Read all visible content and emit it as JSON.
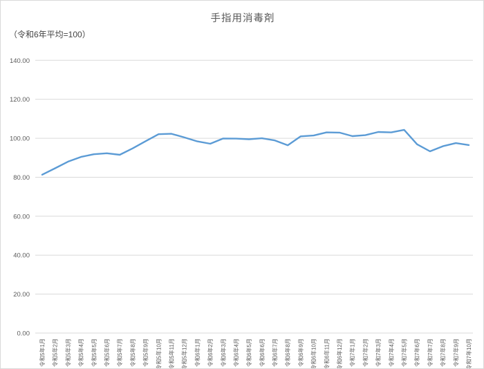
{
  "chart": {
    "title": "手指用消毒剤",
    "subtitle": "（令和6年平均=100）"
  },
  "chart_data": {
    "type": "line",
    "title": "手指用消毒剤",
    "subtitle": "（令和6年平均=100）",
    "categories": [
      "令和5年1月",
      "令和5年2月",
      "令和5年3月",
      "令和5年4月",
      "令和5年5月",
      "令和5年6月",
      "令和5年7月",
      "令和5年8月",
      "令和5年9月",
      "令和5年10月",
      "令和5年11月",
      "令和5年12月",
      "令和6年1月",
      "令和6年2月",
      "令和6年3月",
      "令和6年4月",
      "令和6年5月",
      "令和6年6月",
      "令和6年7月",
      "令和6年8月",
      "令和6年9月",
      "令和6年10月",
      "令和6年11月",
      "令和6年12月",
      "令和7年1月",
      "令和7年2月",
      "令和7年3月",
      "令和7年4月",
      "令和7年5月",
      "令和7年6月",
      "令和7年7月",
      "令和7年8月",
      "令和7年9月",
      "令和7年10月"
    ],
    "series": [
      {
        "name": "手指用消毒剤",
        "values": [
          81.3,
          84.6,
          88.0,
          90.4,
          91.8,
          92.3,
          91.5,
          94.8,
          98.5,
          102.1,
          102.3,
          100.4,
          98.4,
          97.2,
          99.9,
          99.8,
          99.5,
          100.0,
          98.9,
          96.4,
          101.0,
          101.4,
          103.0,
          102.9,
          101.1,
          101.6,
          103.2,
          103.0,
          104.3,
          96.9,
          93.3,
          95.9,
          97.5,
          96.5
        ]
      }
    ],
    "xlabel": "",
    "ylabel": "",
    "ylim": [
      0,
      140
    ],
    "ytick_step": 20,
    "ytick_labels": [
      "0.00",
      "20.00",
      "40.00",
      "60.00",
      "80.00",
      "100.00",
      "120.00",
      "140.00"
    ],
    "grid": "horizontal-only",
    "legend_position": "none",
    "colors": {
      "line": "#5b9bd5",
      "gridline": "#d9d9d9",
      "axis_labels": "#595959",
      "title": "#595959",
      "border": "#d9d9d9",
      "background": "#ffffff"
    }
  }
}
